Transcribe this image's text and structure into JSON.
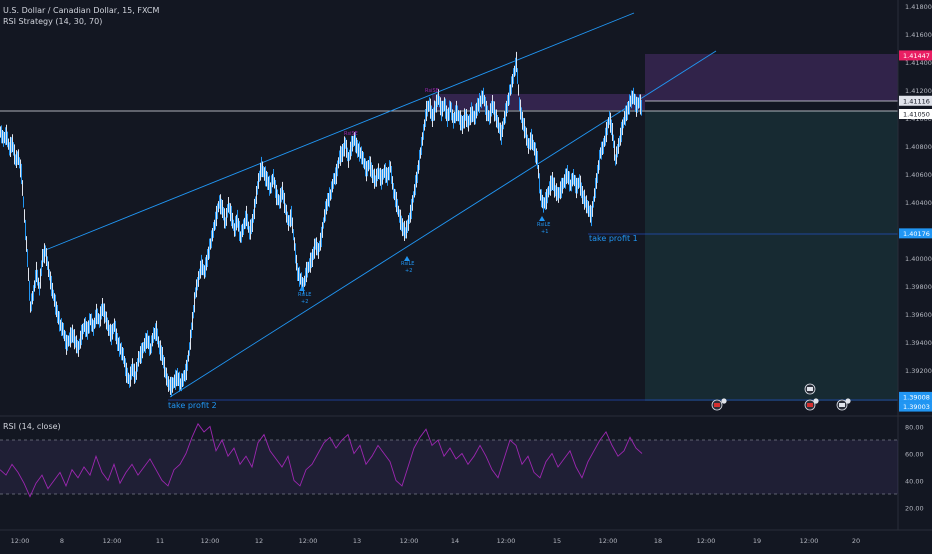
{
  "header": {
    "symbol": "U.S. Dollar / Canadian Dollar, 15, FXCM",
    "strategy": "RSI Strategy (14, 30, 70)",
    "rsi_pane": "RSI (14, close)"
  },
  "chart_data": [
    {
      "type": "candlestick",
      "title": "U.S. Dollar / Canadian Dollar, 15, FXCM",
      "ylim": [
        1.39,
        1.419
      ],
      "y_ticks": [
        "1.41800",
        "1.41600",
        "1.41400",
        "1.41200",
        "1.41000",
        "1.40800",
        "1.40600",
        "1.40400",
        "1.40200",
        "1.40000",
        "1.39800",
        "1.39600",
        "1.39400",
        "1.39200"
      ],
      "price_tags": [
        {
          "label": "1.41447",
          "value": 1.41447,
          "color": "#e91e63"
        },
        {
          "label": "1.41116",
          "value": 1.41116,
          "color": "#e0e3eb"
        },
        {
          "label": "1.41050",
          "value": 1.4105,
          "color": "#ffffff"
        },
        {
          "label": "1.40176",
          "value": 1.40176,
          "color": "#2196f3"
        },
        {
          "label": "1.39008",
          "value": 1.39008,
          "color": "#2196f3"
        },
        {
          "label": "1.39003",
          "value": 1.39003,
          "color": "#2196f3"
        }
      ],
      "x_ticks": [
        "12:00",
        "8",
        "12:00",
        "11",
        "12:00",
        "12",
        "12:00",
        "13",
        "12:00",
        "14",
        "12:00",
        "15",
        "12:00",
        "18",
        "12:00",
        "19",
        "12:00",
        "20"
      ],
      "annotations": [
        "take profit 2",
        "take profit 1",
        "RsiLE",
        "+2",
        "RsiLE",
        "+2",
        "RsiLE",
        "+1",
        "RsiSE",
        "RsiSE"
      ],
      "price_path": [
        [
          0,
          1.409
        ],
        [
          3,
          1.4085
        ],
        [
          6,
          1.4088
        ],
        [
          9,
          1.4078
        ],
        [
          12,
          1.4082
        ],
        [
          15,
          1.407
        ],
        [
          18,
          1.4072
        ],
        [
          21,
          1.406
        ],
        [
          24,
          1.403
        ],
        [
          27,
          1.4
        ],
        [
          30,
          1.3965
        ],
        [
          33,
          1.3975
        ],
        [
          36,
          1.399
        ],
        [
          39,
          1.3978
        ],
        [
          42,
          1.4
        ],
        [
          45,
          1.4005
        ],
        [
          48,
          1.3992
        ],
        [
          51,
          1.398
        ],
        [
          54,
          1.397
        ],
        [
          57,
          1.396
        ],
        [
          60,
          1.3952
        ],
        [
          63,
          1.3948
        ],
        [
          66,
          1.3938
        ],
        [
          69,
          1.3942
        ],
        [
          72,
          1.3946
        ],
        [
          75,
          1.394
        ],
        [
          78,
          1.3935
        ],
        [
          81,
          1.3945
        ],
        [
          84,
          1.3952
        ],
        [
          87,
          1.3948
        ],
        [
          90,
          1.3956
        ],
        [
          93,
          1.395
        ],
        [
          96,
          1.396
        ],
        [
          99,
          1.3955
        ],
        [
          102,
          1.3965
        ],
        [
          105,
          1.3958
        ],
        [
          108,
          1.395
        ],
        [
          111,
          1.3945
        ],
        [
          114,
          1.3952
        ],
        [
          117,
          1.394
        ],
        [
          120,
          1.3935
        ],
        [
          123,
          1.393
        ],
        [
          126,
          1.3918
        ],
        [
          129,
          1.3912
        ],
        [
          132,
          1.3922
        ],
        [
          135,
          1.3915
        ],
        [
          138,
          1.3928
        ],
        [
          141,
          1.3932
        ],
        [
          144,
          1.3938
        ],
        [
          147,
          1.3942
        ],
        [
          150,
          1.3935
        ],
        [
          153,
          1.3945
        ],
        [
          156,
          1.3948
        ],
        [
          159,
          1.3936
        ],
        [
          162,
          1.393
        ],
        [
          165,
          1.3918
        ],
        [
          168,
          1.391
        ],
        [
          171,
          1.3908
        ],
        [
          174,
          1.3912
        ],
        [
          177,
          1.3915
        ],
        [
          180,
          1.391
        ],
        [
          183,
          1.3914
        ],
        [
          186,
          1.392
        ],
        [
          189,
          1.3935
        ],
        [
          192,
          1.3955
        ],
        [
          195,
          1.3975
        ],
        [
          198,
          1.3985
        ],
        [
          201,
          1.3995
        ],
        [
          204,
          1.399
        ],
        [
          207,
          1.4
        ],
        [
          210,
          1.401
        ],
        [
          213,
          1.402
        ],
        [
          216,
          1.403
        ],
        [
          219,
          1.404
        ],
        [
          222,
          1.4035
        ],
        [
          225,
          1.4025
        ],
        [
          228,
          1.4038
        ],
        [
          231,
          1.403
        ],
        [
          234,
          1.402
        ],
        [
          237,
          1.4028
        ],
        [
          240,
          1.4015
        ],
        [
          243,
          1.4022
        ],
        [
          246,
          1.403
        ],
        [
          249,
          1.4018
        ],
        [
          252,
          1.4025
        ],
        [
          255,
          1.404
        ],
        [
          258,
          1.4055
        ],
        [
          261,
          1.4065
        ],
        [
          264,
          1.406
        ],
        [
          267,
          1.4055
        ],
        [
          270,
          1.405
        ],
        [
          273,
          1.4058
        ],
        [
          276,
          1.4045
        ],
        [
          279,
          1.404
        ],
        [
          282,
          1.4048
        ],
        [
          285,
          1.4035
        ],
        [
          288,
          1.4025
        ],
        [
          291,
          1.403
        ],
        [
          294,
          1.401
        ],
        [
          297,
          1.399
        ],
        [
          300,
          1.3985
        ],
        [
          303,
          1.398
        ],
        [
          306,
          1.399
        ],
        [
          309,
          1.3995
        ],
        [
          312,
          1.4
        ],
        [
          315,
          1.401
        ],
        [
          318,
          1.4005
        ],
        [
          321,
          1.4015
        ],
        [
          324,
          1.403
        ],
        [
          327,
          1.404
        ],
        [
          330,
          1.4045
        ],
        [
          333,
          1.4055
        ],
        [
          336,
          1.406
        ],
        [
          339,
          1.4072
        ],
        [
          342,
          1.4075
        ],
        [
          345,
          1.4082
        ],
        [
          348,
          1.407
        ],
        [
          351,
          1.408
        ],
        [
          354,
          1.4085
        ],
        [
          357,
          1.4078
        ],
        [
          360,
          1.4075
        ],
        [
          363,
          1.407
        ],
        [
          366,
          1.4062
        ],
        [
          369,
          1.4068
        ],
        [
          372,
          1.406
        ],
        [
          375,
          1.4055
        ],
        [
          378,
          1.4062
        ],
        [
          381,
          1.4056
        ],
        [
          384,
          1.4062
        ],
        [
          387,
          1.4058
        ],
        [
          390,
          1.4065
        ],
        [
          393,
          1.4048
        ],
        [
          396,
          1.404
        ],
        [
          399,
          1.403
        ],
        [
          402,
          1.4022
        ],
        [
          405,
          1.4018
        ],
        [
          408,
          1.4025
        ],
        [
          411,
          1.4035
        ],
        [
          414,
          1.4048
        ],
        [
          417,
          1.406
        ],
        [
          420,
          1.4075
        ],
        [
          423,
          1.409
        ],
        [
          426,
          1.4105
        ],
        [
          429,
          1.411
        ],
        [
          432,
          1.41
        ],
        [
          435,
          1.4108
        ],
        [
          438,
          1.4115
        ],
        [
          441,
          1.4105
        ],
        [
          444,
          1.411
        ],
        [
          447,
          1.41
        ],
        [
          450,
          1.4108
        ],
        [
          453,
          1.4098
        ],
        [
          456,
          1.4105
        ],
        [
          459,
          1.41
        ],
        [
          462,
          1.4095
        ],
        [
          465,
          1.4102
        ],
        [
          468,
          1.4096
        ],
        [
          471,
          1.4104
        ],
        [
          474,
          1.41
        ],
        [
          477,
          1.4108
        ],
        [
          480,
          1.4112
        ],
        [
          483,
          1.4116
        ],
        [
          486,
          1.4105
        ],
        [
          489,
          1.41
        ],
        [
          492,
          1.411
        ],
        [
          495,
          1.4102
        ],
        [
          498,
          1.4095
        ],
        [
          501,
          1.4088
        ],
        [
          504,
          1.41
        ],
        [
          507,
          1.411
        ],
        [
          510,
          1.412
        ],
        [
          513,
          1.413
        ],
        [
          516,
          1.414
        ],
        [
          519,
          1.411
        ],
        [
          522,
          1.4098
        ],
        [
          525,
          1.409
        ],
        [
          528,
          1.408
        ],
        [
          531,
          1.4085
        ],
        [
          534,
          1.4078
        ],
        [
          537,
          1.407
        ],
        [
          540,
          1.4045
        ],
        [
          543,
          1.4038
        ],
        [
          546,
          1.4042
        ],
        [
          549,
          1.405
        ],
        [
          552,
          1.4055
        ],
        [
          555,
          1.4048
        ],
        [
          558,
          1.4045
        ],
        [
          561,
          1.405
        ],
        [
          564,
          1.4055
        ],
        [
          567,
          1.406
        ],
        [
          570,
          1.4052
        ],
        [
          573,
          1.4058
        ],
        [
          576,
          1.405
        ],
        [
          579,
          1.4055
        ],
        [
          582,
          1.4045
        ],
        [
          585,
          1.404
        ],
        [
          588,
          1.4035
        ],
        [
          591,
          1.403
        ],
        [
          594,
          1.4045
        ],
        [
          597,
          1.406
        ],
        [
          600,
          1.4075
        ],
        [
          603,
          1.408
        ],
        [
          606,
          1.409
        ],
        [
          609,
          1.41
        ],
        [
          612,
          1.409
        ],
        [
          615,
          1.407
        ],
        [
          618,
          1.408
        ],
        [
          621,
          1.409
        ],
        [
          624,
          1.41
        ],
        [
          627,
          1.4105
        ],
        [
          630,
          1.4112
        ],
        [
          633,
          1.4116
        ],
        [
          636,
          1.4108
        ],
        [
          639,
          1.4112
        ],
        [
          642,
          1.4105
        ]
      ],
      "rsi_path": [
        [
          0,
          48
        ],
        [
          6,
          44
        ],
        [
          12,
          52
        ],
        [
          18,
          46
        ],
        [
          24,
          38
        ],
        [
          30,
          28
        ],
        [
          36,
          38
        ],
        [
          42,
          44
        ],
        [
          48,
          34
        ],
        [
          54,
          40
        ],
        [
          60,
          46
        ],
        [
          66,
          36
        ],
        [
          72,
          48
        ],
        [
          78,
          42
        ],
        [
          84,
          50
        ],
        [
          90,
          44
        ],
        [
          96,
          58
        ],
        [
          102,
          46
        ],
        [
          108,
          40
        ],
        [
          114,
          52
        ],
        [
          120,
          38
        ],
        [
          126,
          46
        ],
        [
          132,
          52
        ],
        [
          138,
          44
        ],
        [
          144,
          50
        ],
        [
          150,
          56
        ],
        [
          156,
          48
        ],
        [
          162,
          40
        ],
        [
          168,
          36
        ],
        [
          174,
          48
        ],
        [
          180,
          52
        ],
        [
          186,
          60
        ],
        [
          192,
          72
        ],
        [
          198,
          82
        ],
        [
          204,
          76
        ],
        [
          210,
          80
        ],
        [
          216,
          62
        ],
        [
          222,
          70
        ],
        [
          228,
          58
        ],
        [
          234,
          64
        ],
        [
          240,
          52
        ],
        [
          246,
          58
        ],
        [
          252,
          50
        ],
        [
          258,
          68
        ],
        [
          264,
          74
        ],
        [
          270,
          62
        ],
        [
          276,
          56
        ],
        [
          282,
          50
        ],
        [
          288,
          58
        ],
        [
          294,
          40
        ],
        [
          300,
          36
        ],
        [
          306,
          48
        ],
        [
          312,
          52
        ],
        [
          318,
          60
        ],
        [
          324,
          68
        ],
        [
          330,
          72
        ],
        [
          336,
          64
        ],
        [
          342,
          70
        ],
        [
          348,
          74
        ],
        [
          354,
          60
        ],
        [
          360,
          66
        ],
        [
          366,
          52
        ],
        [
          372,
          58
        ],
        [
          378,
          66
        ],
        [
          384,
          60
        ],
        [
          390,
          54
        ],
        [
          396,
          40
        ],
        [
          402,
          36
        ],
        [
          408,
          50
        ],
        [
          414,
          64
        ],
        [
          420,
          72
        ],
        [
          426,
          78
        ],
        [
          432,
          66
        ],
        [
          438,
          70
        ],
        [
          444,
          58
        ],
        [
          450,
          64
        ],
        [
          456,
          56
        ],
        [
          462,
          60
        ],
        [
          468,
          52
        ],
        [
          474,
          58
        ],
        [
          480,
          66
        ],
        [
          486,
          58
        ],
        [
          492,
          48
        ],
        [
          498,
          42
        ],
        [
          504,
          56
        ],
        [
          510,
          70
        ],
        [
          516,
          66
        ],
        [
          522,
          52
        ],
        [
          528,
          58
        ],
        [
          534,
          46
        ],
        [
          540,
          42
        ],
        [
          546,
          54
        ],
        [
          552,
          60
        ],
        [
          558,
          50
        ],
        [
          564,
          56
        ],
        [
          570,
          62
        ],
        [
          576,
          50
        ],
        [
          582,
          42
        ],
        [
          588,
          54
        ],
        [
          594,
          62
        ],
        [
          600,
          70
        ],
        [
          606,
          76
        ],
        [
          612,
          66
        ],
        [
          618,
          58
        ],
        [
          624,
          62
        ],
        [
          630,
          72
        ],
        [
          636,
          64
        ],
        [
          642,
          60
        ]
      ],
      "rsi_y_ticks": [
        "80.00",
        "60.00",
        "40.00",
        "20.00"
      ],
      "rsi_bands": [
        70,
        30
      ]
    }
  ]
}
